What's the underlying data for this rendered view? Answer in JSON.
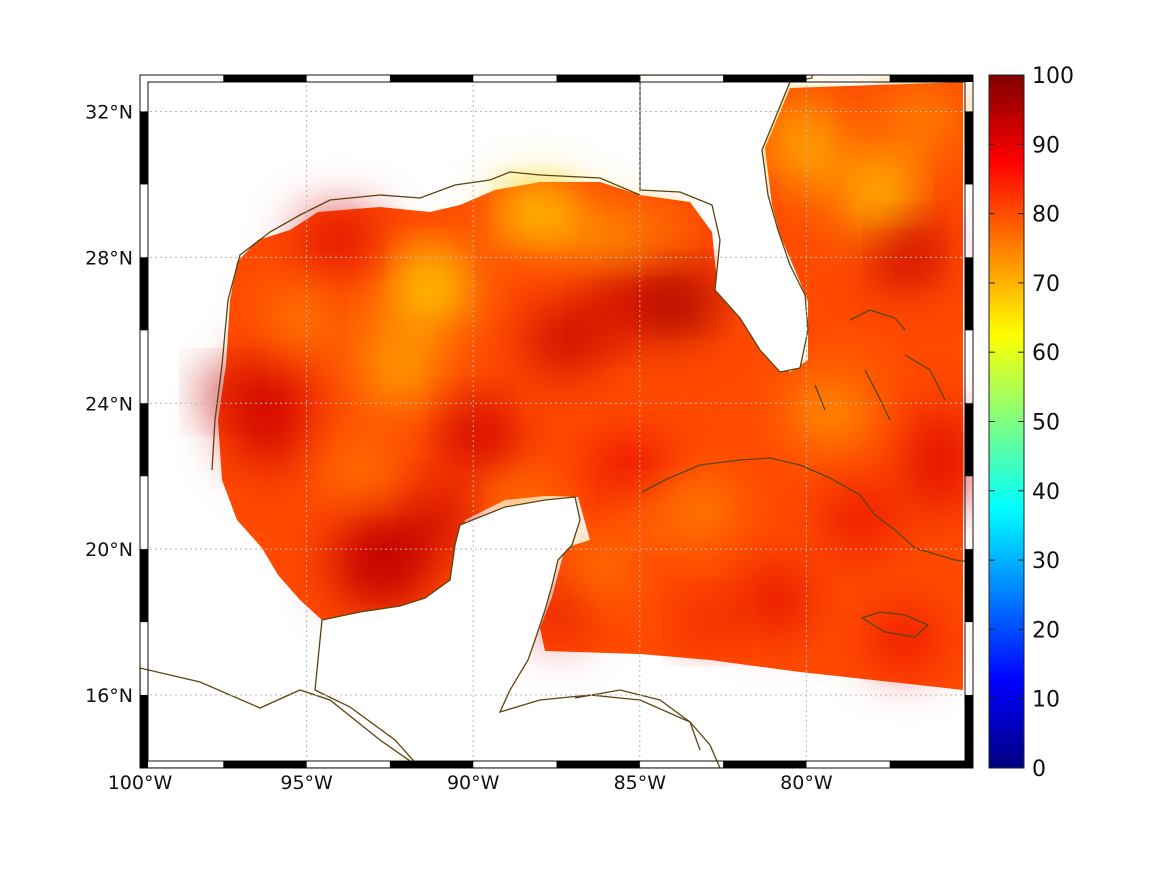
{
  "chart_data": {
    "type": "heatmap",
    "title": "",
    "xlabel": "",
    "ylabel": "",
    "projection": "geographic",
    "grid": true,
    "lon_range": [
      -100,
      -75
    ],
    "lat_range": [
      14,
      33
    ],
    "x_ticks": [
      {
        "value": -100,
        "label": "100°W"
      },
      {
        "value": -95,
        "label": "95°W"
      },
      {
        "value": -90,
        "label": "90°W"
      },
      {
        "value": -85,
        "label": "85°W"
      },
      {
        "value": -80,
        "label": "80°W"
      }
    ],
    "y_ticks": [
      {
        "value": 32,
        "label": "32°N"
      },
      {
        "value": 28,
        "label": "28°N"
      },
      {
        "value": 24,
        "label": "24°N"
      },
      {
        "value": 20,
        "label": "20°N"
      },
      {
        "value": 16,
        "label": "16°N"
      }
    ],
    "colorbar": {
      "colormap": "jet",
      "range": [
        0,
        100
      ],
      "ticks": [
        {
          "value": 100,
          "label": "100"
        },
        {
          "value": 90,
          "label": "90"
        },
        {
          "value": 80,
          "label": "80"
        },
        {
          "value": 70,
          "label": "70"
        },
        {
          "value": 60,
          "label": "60"
        },
        {
          "value": 50,
          "label": "50"
        },
        {
          "value": 40,
          "label": "40"
        },
        {
          "value": 30,
          "label": "30"
        },
        {
          "value": 20,
          "label": "20"
        },
        {
          "value": 10,
          "label": "10"
        },
        {
          "value": 0,
          "label": "0"
        }
      ],
      "stops": [
        {
          "value": 0,
          "color": "#00007f"
        },
        {
          "value": 12.5,
          "color": "#0000ff"
        },
        {
          "value": 37.5,
          "color": "#00ffff"
        },
        {
          "value": 62.5,
          "color": "#ffff00"
        },
        {
          "value": 87.5,
          "color": "#ff0000"
        },
        {
          "value": 100,
          "color": "#7f0000"
        }
      ]
    },
    "value_summary": {
      "min": 62,
      "max": 97,
      "typical": 82
    },
    "hotspots": [
      {
        "lon": -83.5,
        "lat": 27.0,
        "value": 96
      },
      {
        "lon": -92.5,
        "lat": 19.7,
        "value": 95
      },
      {
        "lon": -97.5,
        "lat": 24.3,
        "value": 94
      },
      {
        "lon": -90.0,
        "lat": 23.5,
        "value": 93
      },
      {
        "lon": -86.0,
        "lat": 26.2,
        "value": 93
      },
      {
        "lon": -91.0,
        "lat": 21.2,
        "value": 92
      },
      {
        "lon": -77.0,
        "lat": 28.3,
        "value": 92
      },
      {
        "lon": -83.0,
        "lat": 18.0,
        "value": 91
      }
    ],
    "coolspots": [
      {
        "lon": -91.3,
        "lat": 27.6,
        "value": 68
      },
      {
        "lon": -88.2,
        "lat": 29.3,
        "value": 66
      },
      {
        "lon": -92.5,
        "lat": 26.2,
        "value": 72
      },
      {
        "lon": -80.5,
        "lat": 31.5,
        "value": 70
      },
      {
        "lon": -77.5,
        "lat": 30.0,
        "value": 68
      },
      {
        "lon": -84.5,
        "lat": 28.7,
        "value": 72
      },
      {
        "lon": -84.8,
        "lat": 21.0,
        "value": 74
      },
      {
        "lon": -78.5,
        "lat": 25.0,
        "value": 78
      }
    ]
  }
}
